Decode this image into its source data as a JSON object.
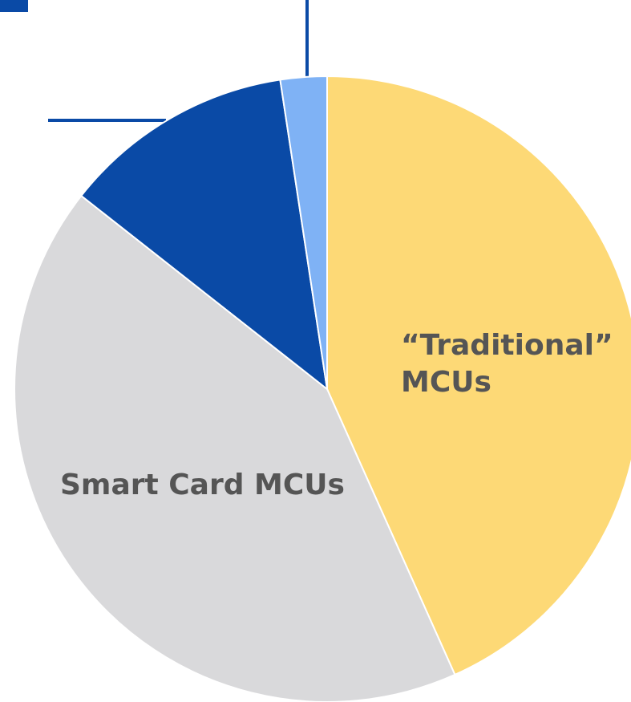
{
  "chart_data": {
    "type": "pie",
    "categories": [
      "“Traditional” MCUs",
      "Smart Card MCUs",
      null,
      null
    ],
    "values": [
      43.3,
      42.3,
      12,
      2.4
    ],
    "colors": [
      "#fdd976",
      "#d9d9db",
      "#0a4aa6",
      "#7fb2f5"
    ]
  }
}
